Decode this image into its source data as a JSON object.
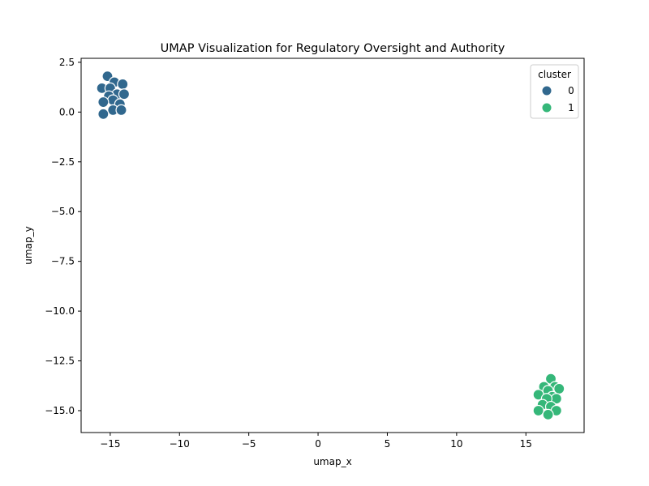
{
  "chart_data": {
    "type": "scatter",
    "title": "UMAP Visualization for Regulatory Oversight and Authority",
    "xlabel": "umap_x",
    "ylabel": "umap_y",
    "xlim": [
      -17.1,
      19.2
    ],
    "ylim": [
      -16.1,
      2.7
    ],
    "xticks": [
      -15,
      -10,
      -5,
      0,
      5,
      10,
      15
    ],
    "yticks": [
      2.5,
      0.0,
      -2.5,
      -5.0,
      -7.5,
      -10.0,
      -12.5,
      -15.0
    ],
    "xtick_labels": [
      "−15",
      "−10",
      "−5",
      "0",
      "5",
      "10",
      "15"
    ],
    "ytick_labels": [
      "2.5",
      "0.0",
      "−2.5",
      "−5.0",
      "−7.5",
      "−10.0",
      "−12.5",
      "−15.0"
    ],
    "grid": false,
    "legend": {
      "title": "cluster",
      "position": "top-right",
      "entries": [
        {
          "label": "0",
          "color": "#31688e"
        },
        {
          "label": "1",
          "color": "#35b779"
        }
      ]
    },
    "series": [
      {
        "name": "0",
        "color": "#31688e",
        "points": [
          {
            "x": -15.2,
            "y": 1.8
          },
          {
            "x": -14.7,
            "y": 1.5
          },
          {
            "x": -14.1,
            "y": 1.4
          },
          {
            "x": -15.6,
            "y": 1.2
          },
          {
            "x": -15.0,
            "y": 1.2
          },
          {
            "x": -14.5,
            "y": 0.9
          },
          {
            "x": -14.0,
            "y": 0.9
          },
          {
            "x": -15.1,
            "y": 0.8
          },
          {
            "x": -14.8,
            "y": 0.6
          },
          {
            "x": -15.5,
            "y": 0.5
          },
          {
            "x": -14.3,
            "y": 0.4
          },
          {
            "x": -14.8,
            "y": 0.1
          },
          {
            "x": -14.2,
            "y": 0.1
          },
          {
            "x": -15.5,
            "y": -0.1
          }
        ]
      },
      {
        "name": "1",
        "color": "#35b779",
        "points": [
          {
            "x": 16.8,
            "y": -13.4
          },
          {
            "x": 16.3,
            "y": -13.8
          },
          {
            "x": 17.1,
            "y": -13.8
          },
          {
            "x": 17.4,
            "y": -13.9
          },
          {
            "x": 16.6,
            "y": -14.0
          },
          {
            "x": 15.9,
            "y": -14.2
          },
          {
            "x": 16.9,
            "y": -14.3
          },
          {
            "x": 17.2,
            "y": -14.4
          },
          {
            "x": 16.5,
            "y": -14.4
          },
          {
            "x": 16.2,
            "y": -14.7
          },
          {
            "x": 16.8,
            "y": -14.8
          },
          {
            "x": 15.9,
            "y": -15.0
          },
          {
            "x": 17.2,
            "y": -15.0
          },
          {
            "x": 16.6,
            "y": -15.2
          }
        ]
      }
    ]
  }
}
